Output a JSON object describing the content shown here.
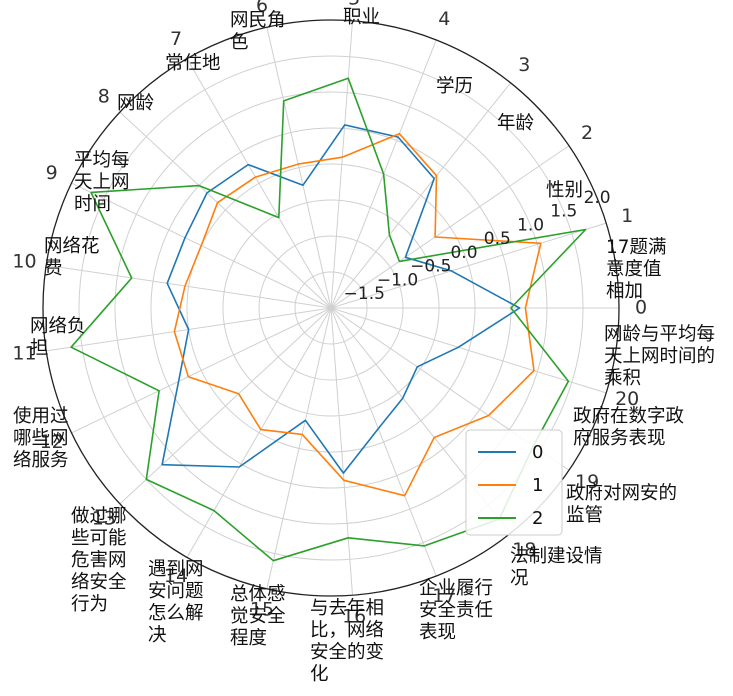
{
  "chart_data": {
    "type": "radar",
    "title": "",
    "theta_tick_labels": [
      "0",
      "1",
      "2",
      "3",
      "4",
      "5",
      "6",
      "7",
      "8",
      "9",
      "10",
      "11",
      "12",
      "13",
      "14",
      "15",
      "16",
      "17",
      "18",
      "19",
      "20"
    ],
    "category_labels": [
      [
        "网龄与平均每",
        "天上网时间的",
        "乘积"
      ],
      [
        "17题满",
        "意度值",
        "相加"
      ],
      [
        "性别"
      ],
      [
        "年龄"
      ],
      [
        "学历"
      ],
      [
        "职业"
      ],
      [
        "网民角",
        "色"
      ],
      [
        "常住地"
      ],
      [
        "网龄"
      ],
      [
        "平均每",
        "天上网",
        "时间"
      ],
      [
        "网络花",
        "费"
      ],
      [
        "网络负",
        "担"
      ],
      [
        "使用过",
        "哪些网",
        "络服务"
      ],
      [
        "做过哪",
        "些可能",
        "危害网",
        "络安全",
        "行为"
      ],
      [
        "遇到网",
        "安问题",
        "怎么解",
        "决"
      ],
      [
        "总体感",
        "觉安全",
        "程度"
      ],
      [
        "与去年相",
        "比，网络",
        "安全的变",
        "化"
      ],
      [
        "企业履行",
        "安全责任",
        "表现"
      ],
      [
        "法制建设情",
        "况"
      ],
      [
        "政府对网安的",
        "监管"
      ],
      [
        "政府在数字政",
        "府服务表现"
      ]
    ],
    "rlim": [
      -2.0,
      2.0
    ],
    "r_tick_labels": [
      "−1.5",
      "−1.0",
      "−0.5",
      "0.0",
      "0.5",
      "1.0",
      "1.5",
      "2.0"
    ],
    "grid": true,
    "legend_position": "lower-right",
    "series": [
      {
        "name": "0",
        "color": "#1f77b4",
        "values": [
          0.62,
          -0.25,
          -0.75,
          0.3,
          0.55,
          0.55,
          -0.25,
          0.3,
          0.35,
          0.25,
          0.3,
          0.0,
          0.35,
          1.2,
          0.55,
          -0.4,
          0.3,
          -0.2,
          -0.4,
          -0.55,
          -0.15
        ]
      },
      {
        "name": "1",
        "color": "#ff7f0e",
        "values": [
          0.7,
          1.05,
          -0.25,
          0.35,
          0.6,
          0.1,
          0.05,
          0.1,
          0.15,
          0.0,
          0.05,
          0.2,
          0.2,
          -0.25,
          -0.05,
          -0.2,
          0.4,
          0.8,
          0.3,
          0.65,
          0.95
        ]
      },
      {
        "name": "2",
        "color": "#2ca02c",
        "values": [
          0.5,
          1.7,
          -0.85,
          -0.7,
          0.0,
          1.2,
          0.95,
          -0.55,
          0.5,
          1.7,
          0.8,
          1.65,
          0.65,
          1.5,
          1.25,
          1.6,
          1.2,
          1.55,
          1.75,
          1.4,
          1.45
        ]
      }
    ]
  }
}
